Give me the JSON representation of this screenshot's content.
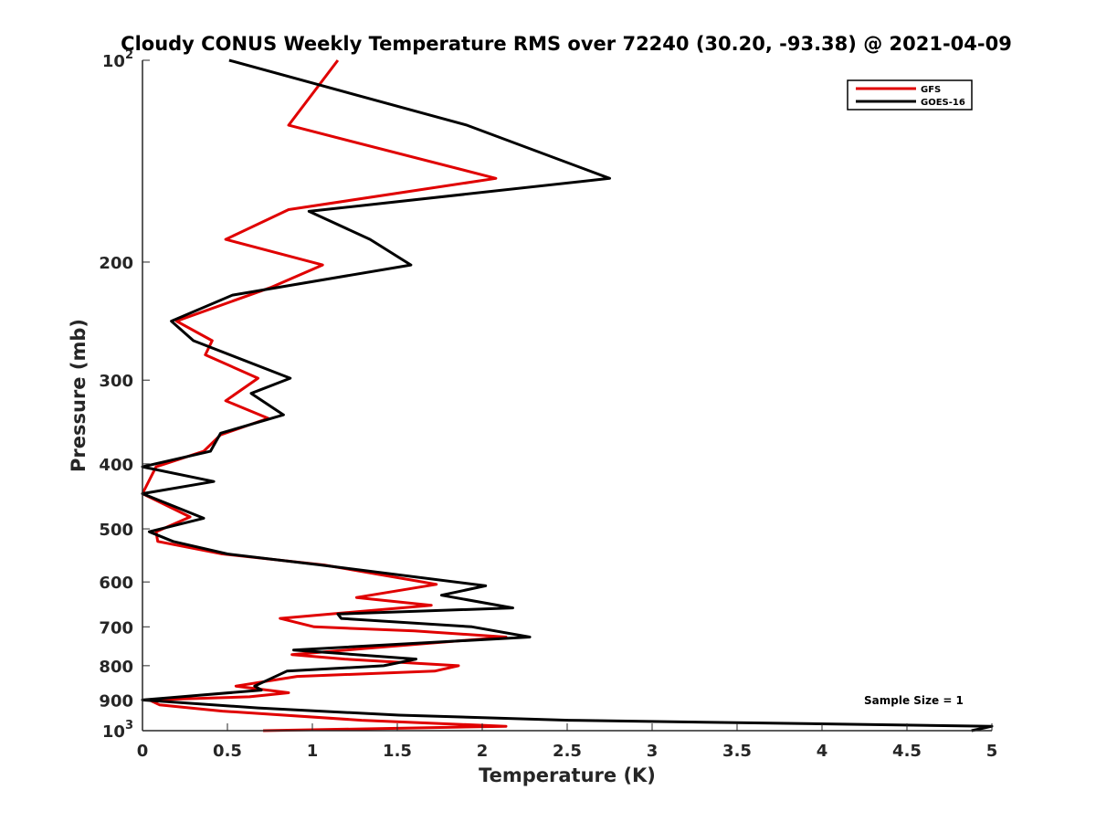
{
  "chart_data": {
    "type": "line",
    "title": "Cloudy CONUS Weekly Temperature RMS over 72240 (30.20, -93.38) @ 2021-04-09",
    "xlabel": "Temperature (K)",
    "ylabel": "Pressure (mb)",
    "xlim": [
      0,
      5
    ],
    "ylim": [
      100,
      1000
    ],
    "yscale": "log",
    "yreversed": true,
    "grid": false,
    "legend_position": "top-right",
    "x_ticks": [
      {
        "value": 0,
        "label": "0"
      },
      {
        "value": 0.5,
        "label": "0.5"
      },
      {
        "value": 1,
        "label": "1"
      },
      {
        "value": 1.5,
        "label": "1.5"
      },
      {
        "value": 2,
        "label": "2"
      },
      {
        "value": 2.5,
        "label": "2.5"
      },
      {
        "value": 3,
        "label": "3"
      },
      {
        "value": 3.5,
        "label": "3.5"
      },
      {
        "value": 4,
        "label": "4"
      },
      {
        "value": 4.5,
        "label": "4.5"
      },
      {
        "value": 5,
        "label": "5"
      }
    ],
    "y_ticks": [
      {
        "value": 100,
        "label": "10",
        "sup": "2"
      },
      {
        "value": 200,
        "label": "200"
      },
      {
        "value": 300,
        "label": "300"
      },
      {
        "value": 400,
        "label": "400"
      },
      {
        "value": 500,
        "label": "500"
      },
      {
        "value": 600,
        "label": "600"
      },
      {
        "value": 700,
        "label": "700"
      },
      {
        "value": 800,
        "label": "800"
      },
      {
        "value": 900,
        "label": "900"
      },
      {
        "value": 1000,
        "label": "10",
        "sup": "3"
      }
    ],
    "series": [
      {
        "name": "GFS",
        "color": "#e00000",
        "points": [
          [
            1.15,
            100
          ],
          [
            0.86,
            125
          ],
          [
            2.08,
            150
          ],
          [
            0.86,
            167
          ],
          [
            0.49,
            185
          ],
          [
            1.06,
            202
          ],
          [
            0.76,
            218
          ],
          [
            0.2,
            245
          ],
          [
            0.41,
            262
          ],
          [
            0.37,
            275
          ],
          [
            0.68,
            298
          ],
          [
            0.49,
            322
          ],
          [
            0.74,
            342
          ],
          [
            0.46,
            362
          ],
          [
            0.36,
            383
          ],
          [
            0.08,
            404
          ],
          [
            0.0,
            443
          ],
          [
            0.28,
            480
          ],
          [
            0.08,
            505
          ],
          [
            0.09,
            522
          ],
          [
            0.47,
            545
          ],
          [
            1.07,
            566
          ],
          [
            1.73,
            605
          ],
          [
            1.26,
            633
          ],
          [
            1.7,
            650
          ],
          [
            0.81,
            680
          ],
          [
            1.01,
            700
          ],
          [
            1.6,
            710
          ],
          [
            2.14,
            725
          ],
          [
            1.31,
            754
          ],
          [
            0.88,
            770
          ],
          [
            1.19,
            782
          ],
          [
            1.86,
            800
          ],
          [
            1.72,
            815
          ],
          [
            0.91,
            830
          ],
          [
            0.55,
            858
          ],
          [
            0.86,
            878
          ],
          [
            0.63,
            890
          ],
          [
            0.04,
            900
          ],
          [
            0.1,
            915
          ],
          [
            0.47,
            935
          ],
          [
            1.29,
            965
          ],
          [
            2.14,
            985
          ],
          [
            0.71,
            1000
          ]
        ]
      },
      {
        "name": "GOES-16",
        "color": "#000000",
        "points": [
          [
            0.51,
            100
          ],
          [
            1.91,
            125
          ],
          [
            2.75,
            150
          ],
          [
            0.98,
            168
          ],
          [
            1.34,
            185
          ],
          [
            1.58,
            202
          ],
          [
            0.53,
            224
          ],
          [
            0.17,
            245
          ],
          [
            0.3,
            262
          ],
          [
            0.87,
            298
          ],
          [
            0.64,
            314
          ],
          [
            0.83,
            338
          ],
          [
            0.46,
            360
          ],
          [
            0.4,
            383
          ],
          [
            0.0,
            404
          ],
          [
            0.42,
            425
          ],
          [
            0.0,
            443
          ],
          [
            0.36,
            482
          ],
          [
            0.04,
            505
          ],
          [
            0.18,
            522
          ],
          [
            0.5,
            545
          ],
          [
            1.05,
            566
          ],
          [
            2.02,
            608
          ],
          [
            1.76,
            628
          ],
          [
            2.18,
            656
          ],
          [
            1.15,
            670
          ],
          [
            1.17,
            680
          ],
          [
            1.94,
            700
          ],
          [
            2.28,
            725
          ],
          [
            0.89,
            758
          ],
          [
            1.61,
            782
          ],
          [
            1.42,
            800
          ],
          [
            0.85,
            815
          ],
          [
            0.66,
            858
          ],
          [
            0.7,
            870
          ],
          [
            0.0,
            900
          ],
          [
            0.68,
            925
          ],
          [
            1.51,
            948
          ],
          [
            2.51,
            965
          ],
          [
            5.0,
            985
          ],
          [
            4.88,
            1000
          ]
        ]
      }
    ],
    "annotation": "Sample Size = 1"
  }
}
